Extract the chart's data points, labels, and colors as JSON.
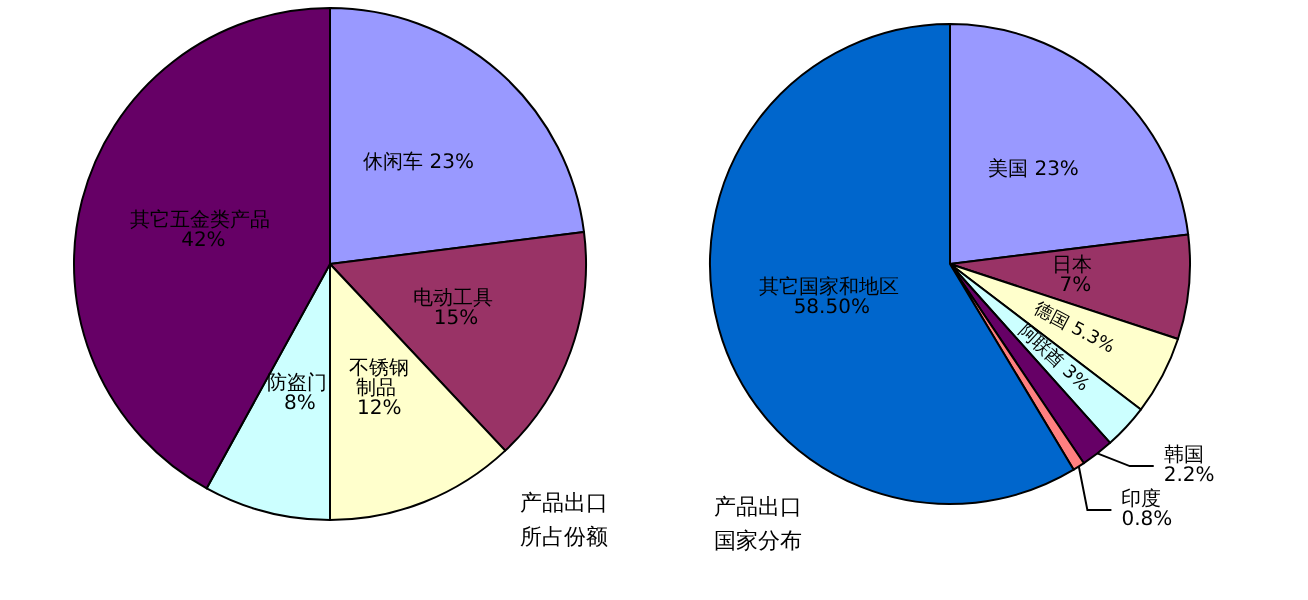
{
  "chart_data": [
    {
      "type": "pie",
      "title": "产品出口所占份额",
      "categories": [
        "休闲车",
        "电动工具",
        "不锈钢制品",
        "防盗门",
        "其它五金类产品"
      ],
      "values": [
        23,
        15,
        12,
        8,
        42
      ],
      "value_labels": [
        "23%",
        "15%",
        "12%",
        "8%",
        "42%"
      ],
      "colors": [
        "#9999ff",
        "#993366",
        "#ffffcc",
        "#ccffff",
        "#660066"
      ],
      "legend": false
    },
    {
      "type": "pie",
      "title": "产品出口国家分布",
      "categories": [
        "美国",
        "日本",
        "德国",
        "阿联酋",
        "韩国",
        "印度",
        "其它国家和地区"
      ],
      "values": [
        23,
        7,
        5.3,
        3,
        2.2,
        0.8,
        58.5
      ],
      "value_labels": [
        "23%",
        "7%",
        "5.3%",
        "3%",
        "2.2%",
        "0.8%",
        "58.50%"
      ],
      "colors": [
        "#9999ff",
        "#993366",
        "#ffffcc",
        "#ccffff",
        "#660066",
        "#ff8080",
        "#0066cc"
      ],
      "legend": false
    }
  ]
}
